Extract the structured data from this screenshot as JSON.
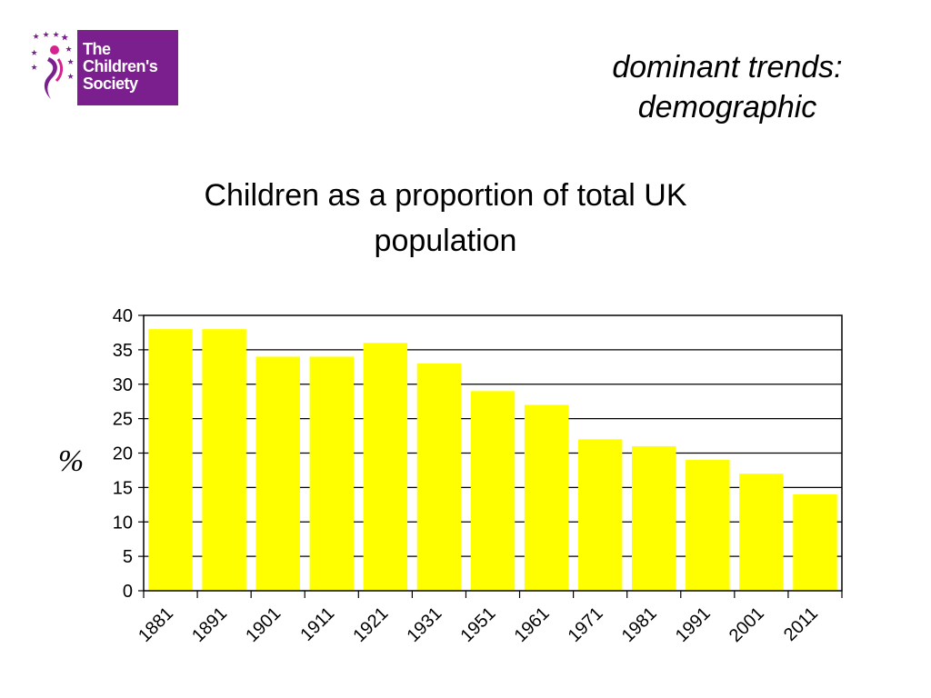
{
  "header": {
    "logo": {
      "line1": "The",
      "line2": "Children's",
      "line3": "Society"
    },
    "section_title_line1": "dominant trends:",
    "section_title_line2": "demographic"
  },
  "colors": {
    "bar": "#ffff00",
    "brand": "#7b1f8f"
  },
  "chart_data": {
    "type": "bar",
    "title_line1": "Children as a proportion of total UK",
    "title_line2": "population",
    "ylabel": "%",
    "xlabel": "",
    "categories": [
      "1881",
      "1891",
      "1901",
      "1911",
      "1921",
      "1931",
      "1951",
      "1961",
      "1971",
      "1981",
      "1991",
      "2001",
      "2011"
    ],
    "values": [
      38,
      38,
      34,
      34,
      36,
      33,
      29,
      27,
      22,
      21,
      19,
      17,
      14
    ],
    "ylim": [
      0,
      40
    ],
    "yticks": [
      0,
      5,
      10,
      15,
      20,
      25,
      30,
      35,
      40
    ],
    "grid": true,
    "legend": "none"
  }
}
